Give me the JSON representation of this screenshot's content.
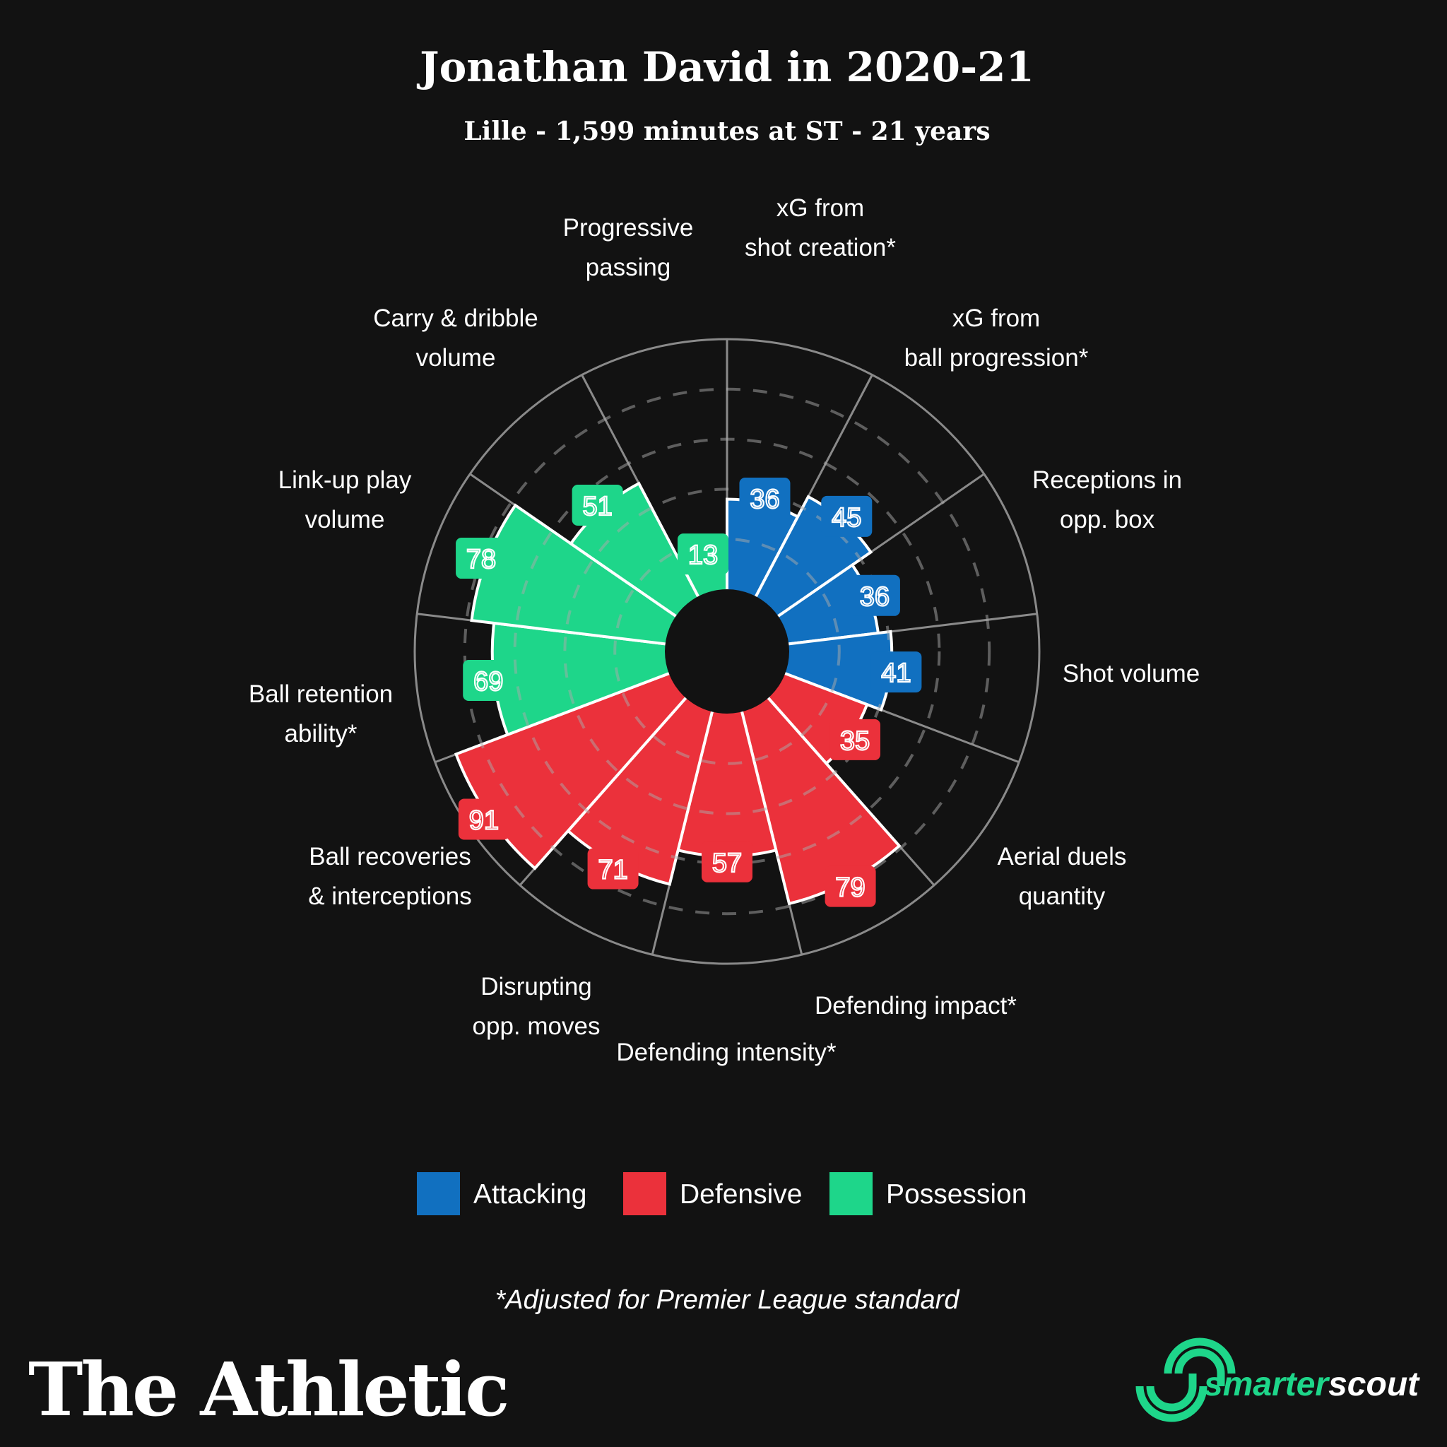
{
  "chart_data": {
    "type": "polar-bar",
    "title": "Jonathan David in 2020-21",
    "subtitle": "Lille - 1,599 minutes at ST - 21 years",
    "range": [
      0,
      100
    ],
    "rings": [
      20,
      40,
      60,
      80
    ],
    "categories": [
      {
        "label": [
          "xG from",
          "shot creation*"
        ],
        "value": 36,
        "group": "Attacking"
      },
      {
        "label": [
          "xG from",
          "ball progression*"
        ],
        "value": 45,
        "group": "Attacking"
      },
      {
        "label": [
          "Receptions in",
          "opp. box"
        ],
        "value": 36,
        "group": "Attacking"
      },
      {
        "label": [
          "Shot volume"
        ],
        "value": 41,
        "group": "Attacking"
      },
      {
        "label": [
          "Aerial duels",
          "quantity"
        ],
        "value": 35,
        "group": "Defensive"
      },
      {
        "label": [
          "Defending impact*"
        ],
        "value": 79,
        "group": "Defensive"
      },
      {
        "label": [
          "Defending intensity*"
        ],
        "value": 57,
        "group": "Defensive"
      },
      {
        "label": [
          "Disrupting",
          "opp. moves"
        ],
        "value": 71,
        "group": "Defensive"
      },
      {
        "label": [
          "Ball recoveries",
          "& interceptions"
        ],
        "value": 91,
        "group": "Defensive"
      },
      {
        "label": [
          "Ball retention",
          "ability*"
        ],
        "value": 69,
        "group": "Possession"
      },
      {
        "label": [
          "Link-up play",
          "volume"
        ],
        "value": 78,
        "group": "Possession"
      },
      {
        "label": [
          "Carry & dribble",
          "volume"
        ],
        "value": 51,
        "group": "Possession"
      },
      {
        "label": [
          "Progressive",
          "passing"
        ],
        "value": 13,
        "group": "Possession"
      }
    ],
    "legend": [
      {
        "name": "Attacking",
        "color": "#1170C0"
      },
      {
        "name": "Defensive",
        "color": "#EB313B"
      },
      {
        "name": "Possession",
        "color": "#1ED68A"
      }
    ],
    "legend_placement": "bottom"
  },
  "footnote": "*Adjusted for Premier League standard",
  "brand": "The Athletic",
  "partner": {
    "part1": "smarter",
    "part2": "scout"
  }
}
